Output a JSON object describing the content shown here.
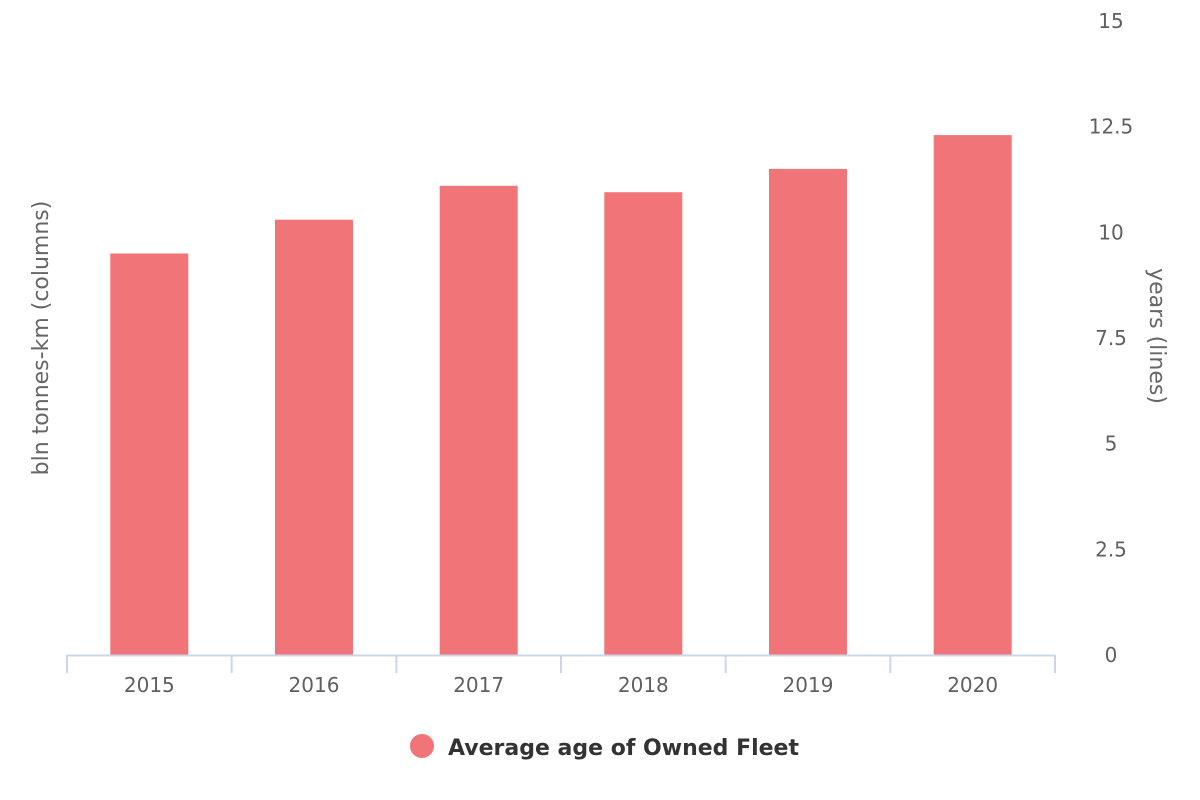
{
  "chart_data": {
    "type": "bar",
    "categories": [
      "2015",
      "2016",
      "2017",
      "2018",
      "2019",
      "2020"
    ],
    "series": [
      {
        "name": "Average age of Owned Fleet",
        "axis": "right",
        "values": [
          9.5,
          10.3,
          11.1,
          10.95,
          11.5,
          12.3
        ],
        "color": "#f07478"
      }
    ],
    "left_axis": {
      "title": "bln tonnes-km (columns)"
    },
    "right_axis": {
      "title": "years (lines)",
      "min": 0,
      "max": 15,
      "ticks": [
        0,
        2.5,
        5,
        7.5,
        10,
        12.5,
        15
      ],
      "tick_labels": [
        "0",
        "2.5",
        "5",
        "7.5",
        "10",
        "12.5",
        "15"
      ]
    },
    "grid": false,
    "legend": {
      "position": "bottom-center",
      "marker": "circle"
    },
    "axis_line_color": "#ccd6eb"
  }
}
